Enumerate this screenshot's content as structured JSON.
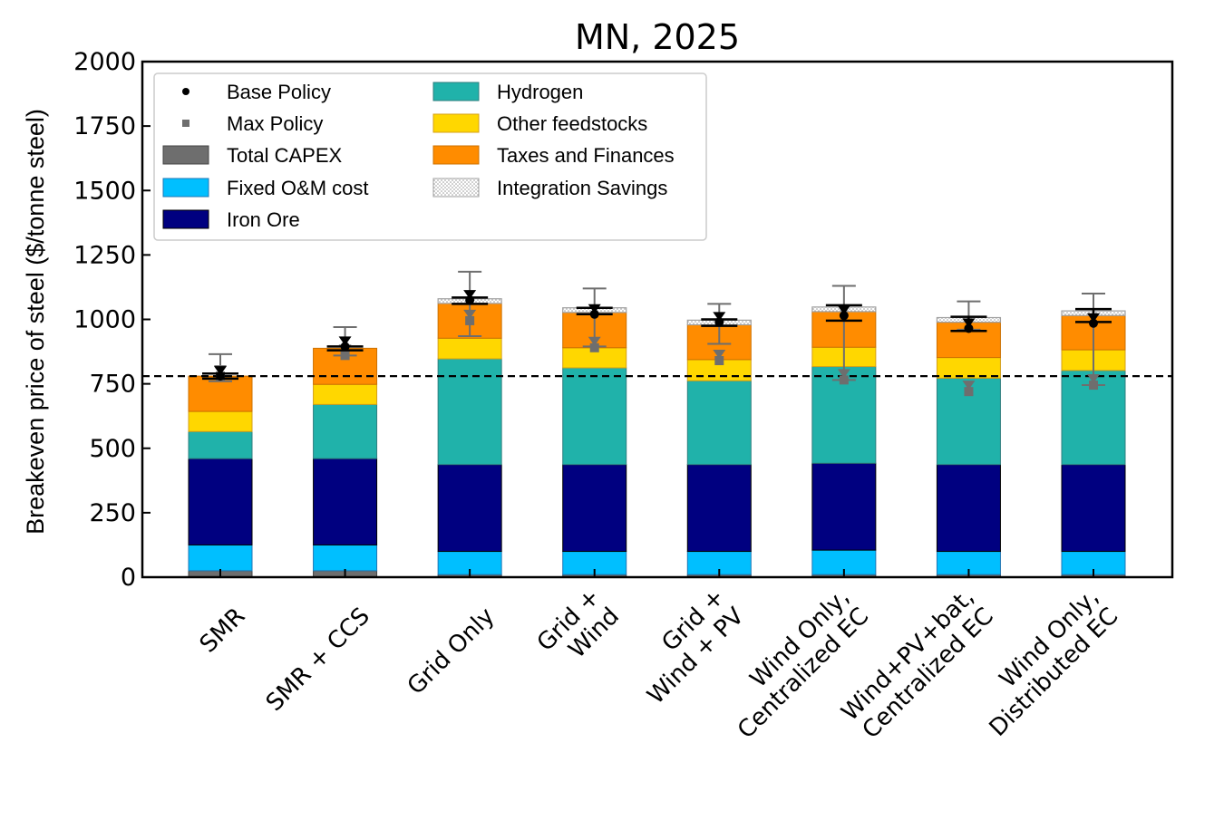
{
  "chart_data": {
    "type": "bar",
    "stacked": true,
    "title": "MN, 2025",
    "xlabel": "",
    "ylabel": "Breakeven price of steel ($/tonne steel)",
    "ylim": [
      0,
      2000
    ],
    "yticks": [
      "0",
      "250",
      "500",
      "750",
      "1000",
      "1250",
      "1500",
      "1750",
      "2000"
    ],
    "grid": false,
    "legend_position": "top-left",
    "reference_line": {
      "value": 780,
      "style": "dashed",
      "color": "#000000"
    },
    "categories": [
      [
        "SMR"
      ],
      [
        "SMR + CCS"
      ],
      [
        "Grid Only"
      ],
      [
        "Grid +",
        "Wind"
      ],
      [
        "Grid +",
        "Wind + PV"
      ],
      [
        "Wind Only,",
        "Centralized EC"
      ],
      [
        "Wind+PV+bat,",
        "Centralized EC"
      ],
      [
        "Wind Only,",
        "Distributed EC"
      ]
    ],
    "series": [
      {
        "name": "Total CAPEX",
        "color": "#6e6e6e",
        "edge": "#444444",
        "values": [
          25,
          25,
          10,
          10,
          10,
          10,
          10,
          10
        ]
      },
      {
        "name": "Fixed O&M cost",
        "color": "#00bfff",
        "edge": "#1f77b4",
        "values": [
          100,
          100,
          90,
          90,
          90,
          95,
          90,
          90
        ]
      },
      {
        "name": "Iron Ore",
        "color": "#000080",
        "edge": "#000000",
        "values": [
          335,
          335,
          337,
          337,
          337,
          337,
          337,
          337
        ]
      },
      {
        "name": "Hydrogen",
        "color": "#20b2aa",
        "edge": "#2f7f7f",
        "values": [
          105,
          210,
          410,
          375,
          325,
          375,
          335,
          365
        ]
      },
      {
        "name": "Other feedstocks",
        "color": "#ffd700",
        "edge": "#d4a017",
        "values": [
          78,
          78,
          80,
          78,
          82,
          75,
          80,
          80
        ]
      },
      {
        "name": "Taxes and Finances",
        "color": "#ff8c00",
        "edge": "#cc7000",
        "values": [
          137,
          140,
          135,
          137,
          135,
          138,
          137,
          133
        ]
      },
      {
        "name": "Integration Savings",
        "color": "#f0f0f0",
        "edge": "#a0a0a0",
        "hatch": true,
        "values": [
          0,
          0,
          18,
          18,
          18,
          18,
          18,
          18
        ]
      }
    ],
    "base_policy": {
      "name": "Base Policy",
      "markers": [
        780,
        895,
        1075,
        1020,
        990,
        1015,
        965,
        985
      ],
      "error_low": [
        770,
        880,
        1060,
        1020,
        975,
        995,
        955,
        990
      ],
      "error_high": [
        790,
        895,
        1085,
        1045,
        1000,
        1055,
        1010,
        1040
      ]
    },
    "max_policy": {
      "name": "Max Policy",
      "markers": [
        780,
        860,
        995,
        890,
        840,
        765,
        720,
        745
      ],
      "error_low": [
        760,
        860,
        935,
        895,
        905,
        765,
        960,
        745
      ],
      "error_high": [
        865,
        970,
        1185,
        1120,
        1060,
        1130,
        1070,
        1100
      ]
    },
    "legend_entries": [
      "Base Policy",
      "Max Policy",
      "Total CAPEX",
      "Fixed O&M cost",
      "Iron Ore",
      "Hydrogen",
      "Other feedstocks",
      "Taxes and Finances",
      "Integration Savings"
    ]
  }
}
